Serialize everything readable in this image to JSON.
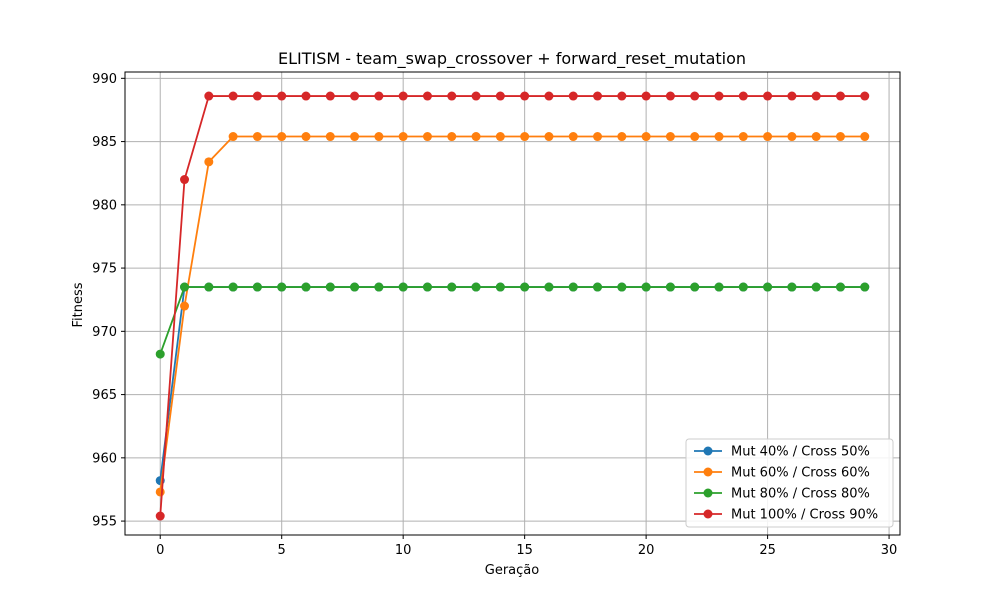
{
  "chart_data": {
    "type": "line",
    "title": "ELITISM - team_swap_crossover + forward_reset_mutation",
    "xlabel": "Geração",
    "ylabel": "Fitness",
    "xlim": [
      -1.45,
      30.45
    ],
    "ylim": [
      953.9,
      990.5
    ],
    "x_ticks": [
      0,
      5,
      10,
      15,
      20,
      25,
      30
    ],
    "y_ticks": [
      955,
      960,
      965,
      970,
      975,
      980,
      985,
      990
    ],
    "grid": true,
    "legend_position": "lower-right",
    "x": [
      0,
      1,
      2,
      3,
      4,
      5,
      6,
      7,
      8,
      9,
      10,
      11,
      12,
      13,
      14,
      15,
      16,
      17,
      18,
      19,
      20,
      21,
      22,
      23,
      24,
      25,
      26,
      27,
      28,
      29
    ],
    "series": [
      {
        "name": "Mut 40% / Cross 50%",
        "color": "#1f77b4",
        "values": [
          958.2,
          973.5,
          973.5,
          973.5,
          973.5,
          973.5,
          973.5,
          973.5,
          973.5,
          973.5,
          973.5,
          973.5,
          973.5,
          973.5,
          973.5,
          973.5,
          973.5,
          973.5,
          973.5,
          973.5,
          973.5,
          973.5,
          973.5,
          973.5,
          973.5,
          973.5,
          973.5,
          973.5,
          973.5,
          973.5
        ]
      },
      {
        "name": "Mut 60% / Cross 60%",
        "color": "#ff7f0e",
        "values": [
          957.3,
          972.0,
          983.4,
          985.4,
          985.4,
          985.4,
          985.4,
          985.4,
          985.4,
          985.4,
          985.4,
          985.4,
          985.4,
          985.4,
          985.4,
          985.4,
          985.4,
          985.4,
          985.4,
          985.4,
          985.4,
          985.4,
          985.4,
          985.4,
          985.4,
          985.4,
          985.4,
          985.4,
          985.4,
          985.4
        ]
      },
      {
        "name": "Mut 80% / Cross 80%",
        "color": "#2ca02c",
        "values": [
          968.2,
          973.5,
          973.5,
          973.5,
          973.5,
          973.5,
          973.5,
          973.5,
          973.5,
          973.5,
          973.5,
          973.5,
          973.5,
          973.5,
          973.5,
          973.5,
          973.5,
          973.5,
          973.5,
          973.5,
          973.5,
          973.5,
          973.5,
          973.5,
          973.5,
          973.5,
          973.5,
          973.5,
          973.5,
          973.5
        ]
      },
      {
        "name": "Mut 100% / Cross 90%",
        "color": "#d62728",
        "values": [
          955.4,
          982.0,
          988.6,
          988.6,
          988.6,
          988.6,
          988.6,
          988.6,
          988.6,
          988.6,
          988.6,
          988.6,
          988.6,
          988.6,
          988.6,
          988.6,
          988.6,
          988.6,
          988.6,
          988.6,
          988.6,
          988.6,
          988.6,
          988.6,
          988.6,
          988.6,
          988.6,
          988.6,
          988.6,
          988.6
        ]
      }
    ]
  }
}
